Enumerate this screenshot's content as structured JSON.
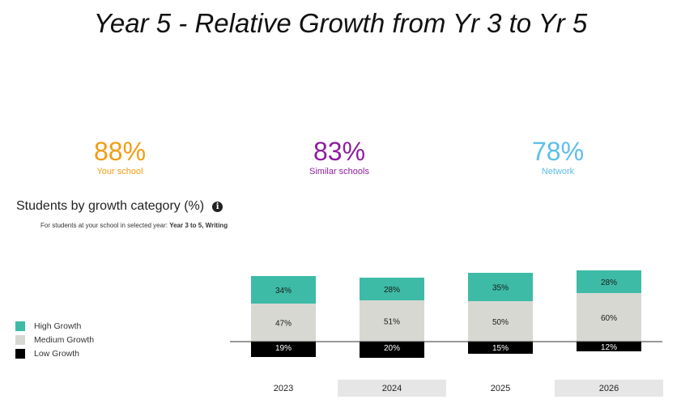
{
  "page": {
    "title": "Year 5 - Relative Growth from Yr 3 to Yr 5"
  },
  "kpis": [
    {
      "value": "88%",
      "label": "Your school",
      "color": "#f39c12"
    },
    {
      "value": "83%",
      "label": "Similar schools",
      "color": "#8e1e9f"
    },
    {
      "value": "78%",
      "label": "Network",
      "color": "#5bbfe8"
    }
  ],
  "section": {
    "title": "Students by growth category (%)",
    "info_icon": "info-icon",
    "caption_prefix": "For students at your school in selected year: ",
    "caption_bold": "Year 3 to 5, Writing"
  },
  "legend": [
    {
      "label": "High Growth",
      "color": "#3dbba6"
    },
    {
      "label": "Medium Growth",
      "color": "#d8d8d3"
    },
    {
      "label": "Low Growth",
      "color": "#000000"
    }
  ],
  "chart_data": {
    "type": "bar",
    "stacked": true,
    "baseline": "diverging",
    "categories": [
      "2023",
      "2024",
      "2025",
      "2026"
    ],
    "series": [
      {
        "name": "High Growth",
        "values": [
          34,
          28,
          35,
          28
        ],
        "color": "#3dbba6",
        "labels": [
          "34%",
          "28%",
          "35%",
          "28%"
        ]
      },
      {
        "name": "Medium Growth",
        "values": [
          47,
          51,
          50,
          60
        ],
        "color": "#d8d8d3",
        "labels": [
          "47%",
          "51%",
          "50%",
          "60%"
        ]
      },
      {
        "name": "Low Growth",
        "values": [
          19,
          20,
          15,
          12
        ],
        "color": "#000000",
        "labels": [
          "19%",
          "20%",
          "15%",
          "12%"
        ]
      }
    ],
    "category_band_colors": [
      "#ffffff",
      "#e6e6e6",
      "#ffffff",
      "#e6e6e6"
    ]
  }
}
